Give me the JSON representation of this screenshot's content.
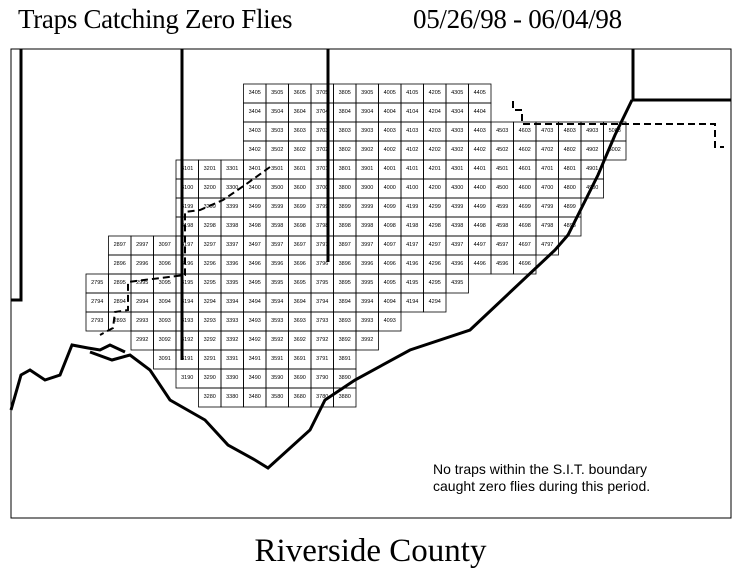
{
  "title": "Traps Catching Zero Flies",
  "date_range": "05/26/98 - 06/04/98",
  "note_lines": [
    "No traps within the S.I.T. boundary",
    "caught zero flies during this period."
  ],
  "footer": "Riverside County",
  "grid_rows": [
    {
      "start_col": 6,
      "ids": [
        "3405",
        "3505",
        "3605",
        "3705",
        "3805",
        "3905",
        "4005",
        "4105",
        "4205",
        "4305",
        "4405"
      ]
    },
    {
      "start_col": 6,
      "ids": [
        "3404",
        "3504",
        "3604",
        "3704",
        "3804",
        "3904",
        "4004",
        "4104",
        "4204",
        "4304",
        "4404"
      ]
    },
    {
      "start_col": 6,
      "ids": [
        "3403",
        "3503",
        "3603",
        "3703",
        "3803",
        "3903",
        "4003",
        "4103",
        "4203",
        "4303",
        "4403",
        "4503",
        "4603",
        "4703",
        "4803",
        "4903",
        "5003"
      ]
    },
    {
      "start_col": 6,
      "ids": [
        "3402",
        "3502",
        "3602",
        "3702",
        "3802",
        "3902",
        "4002",
        "4102",
        "4202",
        "4302",
        "4402",
        "4502",
        "4602",
        "4702",
        "4802",
        "4902",
        "5002"
      ]
    },
    {
      "start_col": 3,
      "ids": [
        "3101",
        "3201",
        "3301",
        "3401",
        "3501",
        "3601",
        "3701",
        "3801",
        "3901",
        "4001",
        "4101",
        "4201",
        "4301",
        "4401",
        "4501",
        "4601",
        "4701",
        "4801",
        "4901"
      ]
    },
    {
      "start_col": 3,
      "ids": [
        "3100",
        "3200",
        "3300",
        "3400",
        "3500",
        "3600",
        "3700",
        "3800",
        "3900",
        "4000",
        "4100",
        "4200",
        "4300",
        "4400",
        "4500",
        "4600",
        "4700",
        "4800",
        "4900"
      ]
    },
    {
      "start_col": 3,
      "ids": [
        "3199",
        "3299",
        "3399",
        "3499",
        "3599",
        "3699",
        "3799",
        "3899",
        "3999",
        "4099",
        "4199",
        "4299",
        "4399",
        "4499",
        "4599",
        "4699",
        "4799",
        "4899"
      ]
    },
    {
      "start_col": 3,
      "ids": [
        "3198",
        "3298",
        "3398",
        "3498",
        "3598",
        "3698",
        "3798",
        "3898",
        "3998",
        "4098",
        "4198",
        "4298",
        "4398",
        "4498",
        "4598",
        "4698",
        "4798",
        "4898"
      ]
    },
    {
      "start_col": 0,
      "ids": [
        "2897",
        "2997",
        "3097",
        "3197",
        "3297",
        "3397",
        "3497",
        "3597",
        "3697",
        "3797",
        "3897",
        "3997",
        "4097",
        "4197",
        "4297",
        "4397",
        "4497",
        "4597",
        "4697",
        "4797"
      ]
    },
    {
      "start_col": 0,
      "ids": [
        "2896",
        "2996",
        "3096",
        "3196",
        "3296",
        "3396",
        "3496",
        "3596",
        "3696",
        "3796",
        "3896",
        "3996",
        "4096",
        "4196",
        "4296",
        "4396",
        "4496",
        "4596",
        "4696"
      ]
    },
    {
      "start_col": -1,
      "ids": [
        "2795",
        "2895",
        "2995",
        "3095",
        "3195",
        "3295",
        "3395",
        "3495",
        "3595",
        "3695",
        "3795",
        "3895",
        "3995",
        "4095",
        "4195",
        "4295",
        "4395"
      ]
    },
    {
      "start_col": -1,
      "ids": [
        "2794",
        "2894",
        "2994",
        "3094",
        "3194",
        "3294",
        "3394",
        "3494",
        "3594",
        "3694",
        "3794",
        "3894",
        "3994",
        "4094",
        "4194",
        "4294"
      ]
    },
    {
      "start_col": -1,
      "ids": [
        "2793",
        "2893",
        "2993",
        "3093",
        "3193",
        "3293",
        "3393",
        "3493",
        "3593",
        "3693",
        "3793",
        "3893",
        "3993",
        "4093"
      ]
    },
    {
      "start_col": 1,
      "ids": [
        "2992",
        "3092",
        "3192",
        "3292",
        "3392",
        "3492",
        "3592",
        "3692",
        "3792",
        "3892",
        "3992"
      ]
    },
    {
      "start_col": 2,
      "ids": [
        "3091",
        "3191",
        "3291",
        "3391",
        "3491",
        "3591",
        "3691",
        "3791",
        "3891"
      ]
    },
    {
      "start_col": 3,
      "ids": [
        "3190",
        "3290",
        "3390",
        "3490",
        "3590",
        "3690",
        "3790",
        "3890"
      ]
    },
    {
      "start_col": 4,
      "ids": [
        "3280",
        "3380",
        "3480",
        "3580",
        "3680",
        "3780",
        "3880"
      ]
    }
  ]
}
